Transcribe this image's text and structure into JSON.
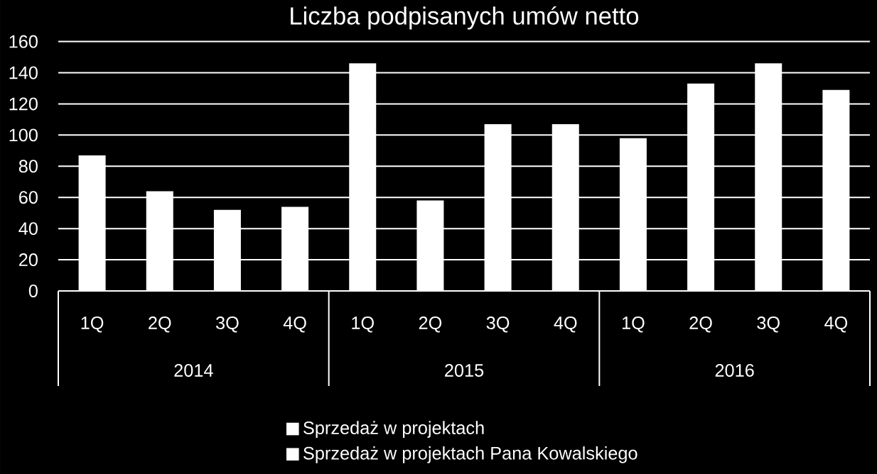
{
  "chart_data": {
    "type": "bar",
    "title": "Liczba podpisanych umów netto",
    "categories": [
      "1Q",
      "2Q",
      "3Q",
      "4Q",
      "1Q",
      "2Q",
      "3Q",
      "4Q",
      "1Q",
      "2Q",
      "3Q",
      "4Q"
    ],
    "series": [
      {
        "name": "Sprzedaż w projektach",
        "color": "#ffffff",
        "values": [
          87,
          64,
          52,
          54,
          146,
          58,
          107,
          107,
          98,
          133,
          146,
          129
        ]
      },
      {
        "name": "Sprzedaż w projektach Pana Kowalskiego",
        "color": "#ffffff",
        "values": [
          null,
          null,
          null,
          null,
          null,
          null,
          null,
          null,
          null,
          null,
          null,
          null
        ]
      }
    ],
    "annotations": [
      "2014",
      "2015",
      "2016"
    ],
    "ylim": [
      0,
      160
    ],
    "yticks": [
      0,
      20,
      40,
      60,
      80,
      100,
      120,
      140,
      160
    ],
    "grid": "y",
    "legend": "bottom"
  }
}
